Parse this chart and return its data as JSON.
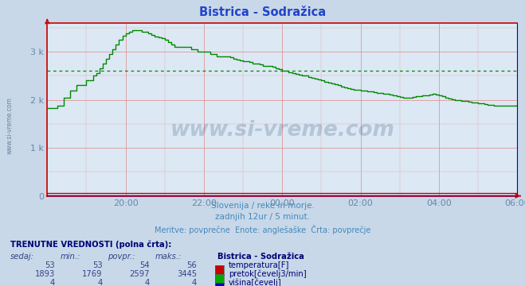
{
  "title": "Bistrica - Sodražica",
  "title_color": "#2244cc",
  "bg_color": "#c8d8e8",
  "plot_bg_color": "#dce8f4",
  "grid_color": "#dd8888",
  "tick_color": "#6688aa",
  "watermark_color": "#1a3a6a",
  "subtitle_color": "#4488bb",
  "pretok_color": "#008800",
  "temp_color": "#cc0000",
  "height_color": "#0000cc",
  "avg_flow": 2597,
  "y_max": 3600,
  "y_ticks": [
    0,
    1000,
    2000,
    3000
  ],
  "y_tick_labels": [
    "0",
    "1 k",
    "2 k",
    "3 k"
  ],
  "x_tick_labels": [
    "",
    "20:00",
    "22:00",
    "00:00",
    "02:00",
    "04:00",
    "06:00"
  ],
  "subtitle1": "Slovenija / reke in morje.",
  "subtitle2": "zadnjih 12ur / 5 minut.",
  "subtitle3": "Meritve: povprečne  Enote: anglešaške  Črta: povprečje",
  "table_header": "TRENUTNE VREDNOSTI (polna črta):",
  "col_headers": [
    "sedaj:",
    "min.:",
    "povpr.:",
    "maks.:"
  ],
  "bistrica_label": "Bistrica - Sodražica",
  "rows": [
    {
      "vals": [
        "53",
        "53",
        "54",
        "56"
      ],
      "box_color": "#cc0000",
      "label": "temperatura[F]"
    },
    {
      "vals": [
        "1893",
        "1769",
        "2597",
        "3445"
      ],
      "box_color": "#00aa00",
      "label": "pretok[čevelj3/min]"
    },
    {
      "vals": [
        "4",
        "4",
        "4",
        "4"
      ],
      "box_color": "#0000cc",
      "label": "višina[čevelj]"
    }
  ],
  "pretok": [
    1830,
    1830,
    1830,
    1870,
    1870,
    2050,
    2050,
    2200,
    2200,
    2300,
    2300,
    2300,
    2400,
    2400,
    2500,
    2550,
    2650,
    2750,
    2850,
    2950,
    3050,
    3150,
    3250,
    3330,
    3380,
    3420,
    3445,
    3445,
    3445,
    3420,
    3420,
    3380,
    3350,
    3320,
    3300,
    3280,
    3250,
    3200,
    3150,
    3100,
    3100,
    3100,
    3100,
    3100,
    3050,
    3050,
    3000,
    3000,
    3000,
    3000,
    2950,
    2950,
    2900,
    2900,
    2900,
    2900,
    2880,
    2860,
    2840,
    2820,
    2800,
    2800,
    2780,
    2760,
    2750,
    2730,
    2710,
    2700,
    2700,
    2680,
    2650,
    2630,
    2610,
    2600,
    2580,
    2560,
    2540,
    2520,
    2500,
    2500,
    2480,
    2460,
    2440,
    2420,
    2400,
    2380,
    2360,
    2340,
    2320,
    2300,
    2280,
    2260,
    2240,
    2220,
    2210,
    2210,
    2200,
    2190,
    2180,
    2170,
    2160,
    2150,
    2140,
    2130,
    2120,
    2110,
    2100,
    2080,
    2060,
    2050,
    2050,
    2050,
    2060,
    2070,
    2080,
    2090,
    2100,
    2110,
    2120,
    2110,
    2090,
    2070,
    2050,
    2030,
    2010,
    2000,
    1990,
    1980,
    1970,
    1960,
    1950,
    1940,
    1930,
    1920,
    1910,
    1900,
    1890,
    1880,
    1880,
    1880,
    1880,
    1880,
    1880,
    1880,
    1893
  ]
}
